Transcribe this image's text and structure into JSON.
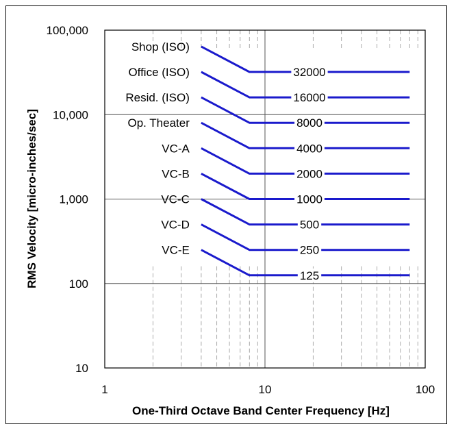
{
  "chart_data": {
    "type": "line",
    "title": "",
    "xlabel": "One-Third Octave Band Center Frequency [Hz]",
    "ylabel": "RMS Velocity [micro-inches/sec]",
    "x_scale": "log",
    "y_scale": "log",
    "xlim": [
      1,
      100
    ],
    "ylim": [
      10,
      100000
    ],
    "x_ticks": [
      1,
      10,
      100
    ],
    "x_tick_labels": [
      "1",
      "10",
      "100"
    ],
    "y_ticks": [
      10,
      100,
      1000,
      10000,
      100000
    ],
    "y_tick_labels": [
      "10",
      "100",
      "1,000",
      "10,000",
      "100,000"
    ],
    "grid": "major solid, minor dashed vertical",
    "series": [
      {
        "name": "Shop (ISO)",
        "x": [
          4,
          8,
          80
        ],
        "y": [
          64000,
          32000,
          32000
        ],
        "value_label": "32000"
      },
      {
        "name": "Office (ISO)",
        "x": [
          4,
          8,
          80
        ],
        "y": [
          32000,
          16000,
          16000
        ],
        "value_label": "16000"
      },
      {
        "name": "Resid. (ISO)",
        "x": [
          4,
          8,
          80
        ],
        "y": [
          16000,
          8000,
          8000
        ],
        "value_label": "8000"
      },
      {
        "name": "Op. Theater",
        "x": [
          4,
          8,
          80
        ],
        "y": [
          8000,
          4000,
          4000
        ],
        "value_label": "4000"
      },
      {
        "name": "VC-A",
        "x": [
          4,
          8,
          80
        ],
        "y": [
          4000,
          2000,
          2000
        ],
        "value_label": "2000"
      },
      {
        "name": "VC-B",
        "x": [
          4,
          8,
          80
        ],
        "y": [
          2000,
          1000,
          1000
        ],
        "value_label": "1000"
      },
      {
        "name": "VC-C",
        "x": [
          4,
          8,
          80
        ],
        "y": [
          1000,
          500,
          500
        ],
        "value_label": "500"
      },
      {
        "name": "VC-D",
        "x": [
          4,
          8,
          80
        ],
        "y": [
          500,
          250,
          250
        ],
        "value_label": "250"
      },
      {
        "name": "VC-E",
        "x": [
          4,
          8,
          80
        ],
        "y": [
          250,
          125,
          125
        ],
        "value_label": "125"
      }
    ],
    "line_color": "#1a1acc"
  }
}
